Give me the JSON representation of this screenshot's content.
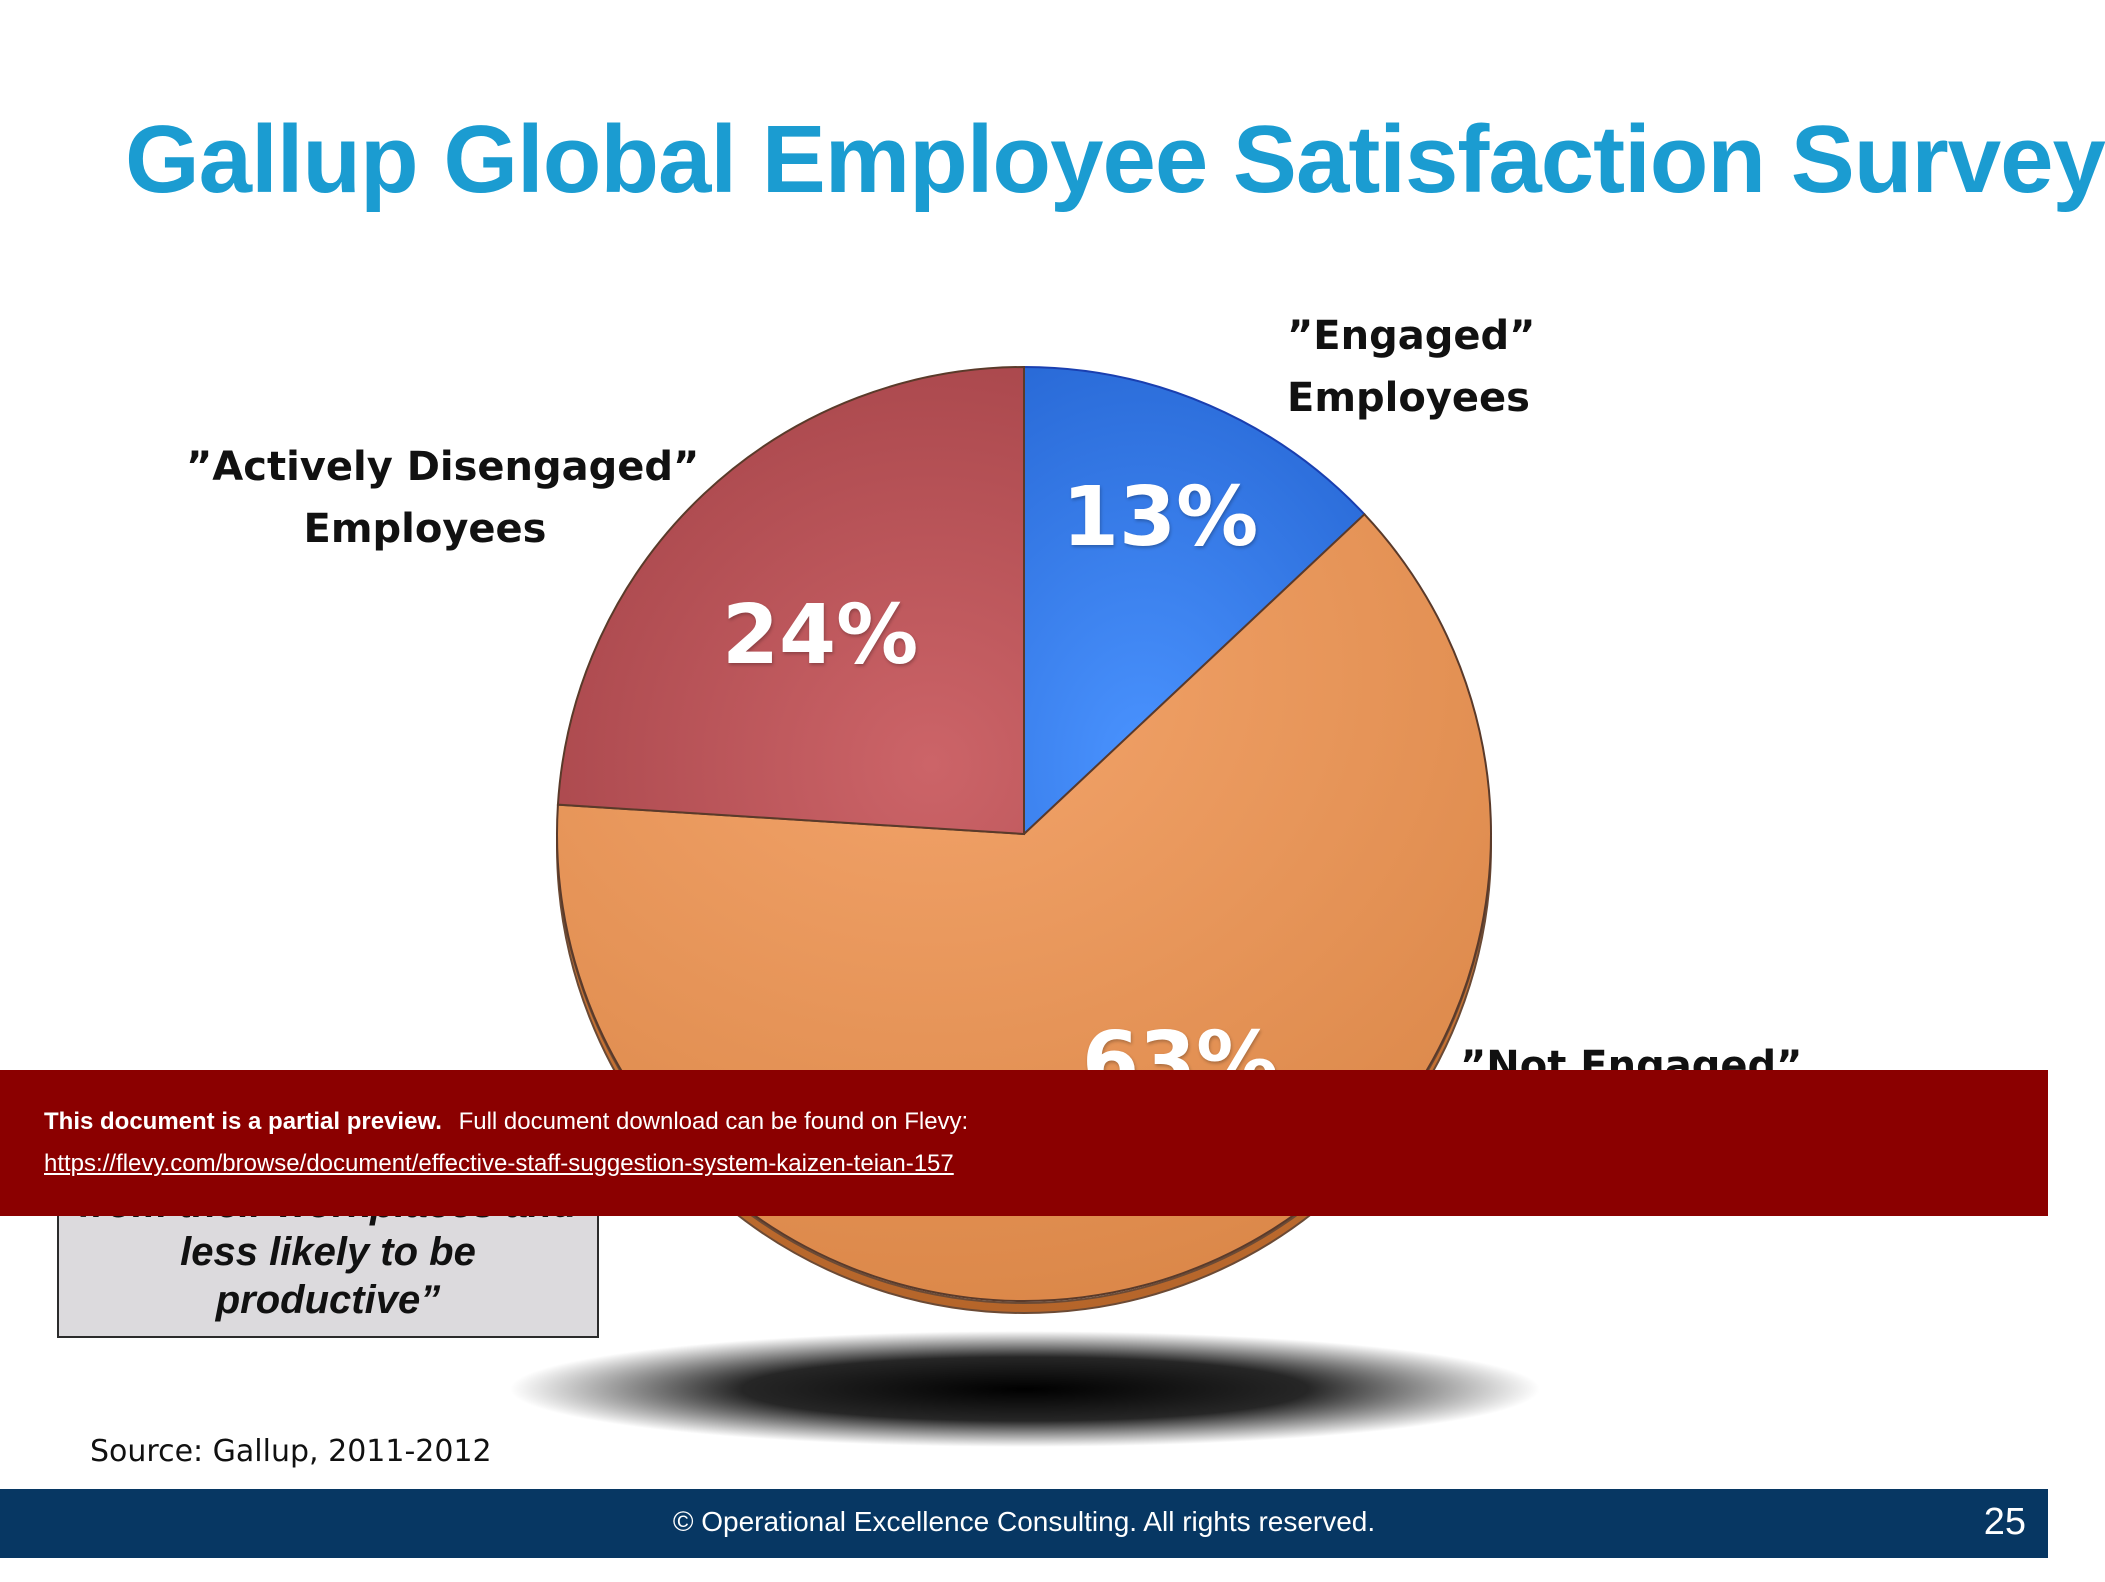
{
  "slide": {
    "title": "Gallup Global Employee Satisfaction Survey",
    "source": "Source:  Gallup, 2011-2012",
    "page_number": "25"
  },
  "labels": {
    "engaged_line1": "”Engaged”",
    "engaged_line2": "Employees",
    "disengaged_line1": "”Actively Disengaged”",
    "disengaged_line2": "Employees",
    "not_engaged_line1": "”Not Engaged”"
  },
  "quote_box": {
    "line1": "from their workplaces and",
    "line2": "less likely to be",
    "line3": "productive”"
  },
  "banner": {
    "bold_text": "This document is a partial preview.",
    "text": "Full document download can be found on Flevy:",
    "link": "https://flevy.com/browse/document/effective-staff-suggestion-system-kaizen-teian-157"
  },
  "footer": {
    "text": "© Operational Excellence Consulting.  All rights reserved."
  },
  "chart_data": {
    "type": "pie",
    "slices": [
      {
        "label": "”Engaged” Employees",
        "value": 13,
        "display": "13%",
        "color": "#3b7fe6"
      },
      {
        "label": "”Not Engaged”",
        "value": 63,
        "display": "63%",
        "color": "#e8955a"
      },
      {
        "label": "”Actively Disengaged” Employees",
        "value": 24,
        "display": "24%",
        "color": "#c0555a"
      }
    ]
  }
}
